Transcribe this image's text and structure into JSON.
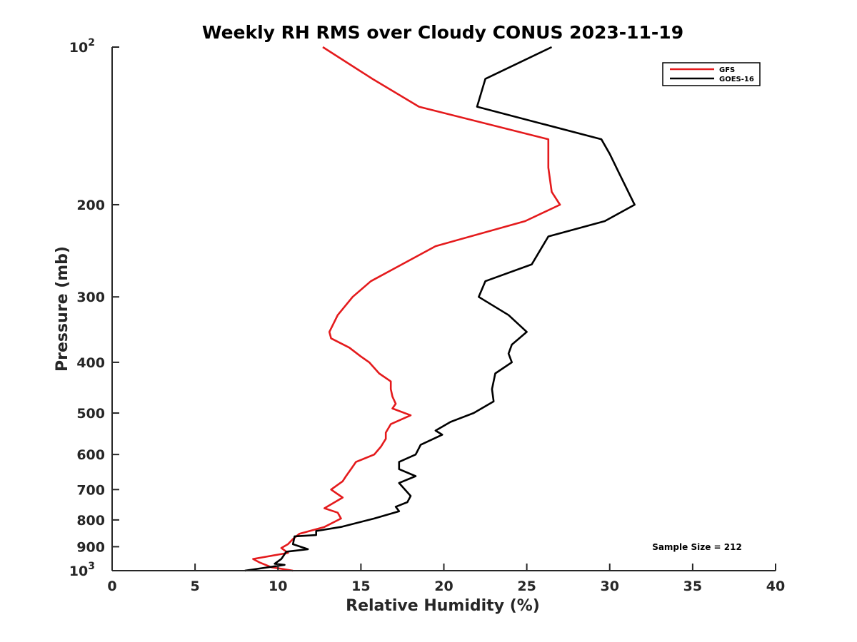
{
  "chart_data": {
    "type": "line",
    "title": "Weekly RH RMS over Cloudy CONUS 2023-11-19",
    "xlabel": "Relative Humidity (%)",
    "ylabel": "Pressure (mb)",
    "xlim": [
      0,
      40
    ],
    "ylim": [
      100,
      1000
    ],
    "y_scale": "log",
    "y_reversed": true,
    "grid": false,
    "legend_position": "top-right",
    "x_ticks": [
      0,
      5,
      10,
      15,
      20,
      25,
      30,
      35,
      40
    ],
    "y_ticks": [
      {
        "value": 100,
        "base": "10",
        "exp": "2"
      },
      {
        "value": 200,
        "label": "200"
      },
      {
        "value": 300,
        "label": "300"
      },
      {
        "value": 400,
        "label": "400"
      },
      {
        "value": 500,
        "label": "500"
      },
      {
        "value": 600,
        "label": "600"
      },
      {
        "value": 700,
        "label": "700"
      },
      {
        "value": 800,
        "label": "800"
      },
      {
        "value": 900,
        "label": "900"
      },
      {
        "value": 1000,
        "base": "10",
        "exp": "3"
      }
    ],
    "series": [
      {
        "name": "GFS",
        "color": "#e41a1c",
        "points": [
          [
            12.7,
            100
          ],
          [
            15.7,
            115
          ],
          [
            18.5,
            130
          ],
          [
            26.3,
            150
          ],
          [
            26.3,
            170
          ],
          [
            26.5,
            189
          ],
          [
            27.0,
            200
          ],
          [
            24.9,
            215
          ],
          [
            19.5,
            240
          ],
          [
            15.6,
            280
          ],
          [
            14.5,
            300
          ],
          [
            13.6,
            325
          ],
          [
            13.1,
            350
          ],
          [
            13.2,
            360
          ],
          [
            14.3,
            375
          ],
          [
            15.0,
            390
          ],
          [
            15.5,
            400
          ],
          [
            16.1,
            420
          ],
          [
            16.8,
            435
          ],
          [
            16.8,
            450
          ],
          [
            16.9,
            465
          ],
          [
            17.1,
            480
          ],
          [
            16.9,
            490
          ],
          [
            18.0,
            505
          ],
          [
            16.8,
            525
          ],
          [
            16.5,
            545
          ],
          [
            16.5,
            560
          ],
          [
            16.2,
            580
          ],
          [
            15.8,
            600
          ],
          [
            14.7,
            620
          ],
          [
            14.4,
            640
          ],
          [
            14.1,
            660
          ],
          [
            13.9,
            675
          ],
          [
            13.2,
            700
          ],
          [
            13.9,
            725
          ],
          [
            12.8,
            760
          ],
          [
            13.6,
            775
          ],
          [
            13.8,
            795
          ],
          [
            12.8,
            825
          ],
          [
            11.3,
            850
          ],
          [
            10.9,
            870
          ],
          [
            10.6,
            890
          ],
          [
            10.2,
            905
          ],
          [
            10.6,
            925
          ],
          [
            8.5,
            950
          ],
          [
            8.9,
            965
          ],
          [
            9.6,
            985
          ],
          [
            10.9,
            1000
          ]
        ]
      },
      {
        "name": "GOES-16",
        "color": "#000000",
        "points": [
          [
            26.5,
            100
          ],
          [
            22.5,
            115
          ],
          [
            22.0,
            130
          ],
          [
            29.5,
            150
          ],
          [
            30.0,
            160
          ],
          [
            30.6,
            175
          ],
          [
            31.5,
            200
          ],
          [
            29.7,
            215
          ],
          [
            26.3,
            230
          ],
          [
            25.3,
            260
          ],
          [
            22.5,
            280
          ],
          [
            22.1,
            300
          ],
          [
            23.9,
            325
          ],
          [
            25.0,
            350
          ],
          [
            24.1,
            370
          ],
          [
            23.9,
            385
          ],
          [
            24.1,
            400
          ],
          [
            23.1,
            420
          ],
          [
            22.9,
            450
          ],
          [
            23.0,
            475
          ],
          [
            21.8,
            500
          ],
          [
            20.4,
            520
          ],
          [
            19.5,
            540
          ],
          [
            19.9,
            550
          ],
          [
            18.6,
            575
          ],
          [
            18.3,
            600
          ],
          [
            17.3,
            620
          ],
          [
            17.3,
            640
          ],
          [
            18.3,
            660
          ],
          [
            17.3,
            680
          ],
          [
            18.0,
            720
          ],
          [
            17.8,
            740
          ],
          [
            17.1,
            755
          ],
          [
            17.3,
            770
          ],
          [
            15.8,
            795
          ],
          [
            13.8,
            825
          ],
          [
            12.3,
            840
          ],
          [
            12.3,
            855
          ],
          [
            11.0,
            860
          ],
          [
            10.9,
            890
          ],
          [
            11.8,
            910
          ],
          [
            10.5,
            920
          ],
          [
            10.2,
            950
          ],
          [
            9.8,
            970
          ],
          [
            10.4,
            975
          ],
          [
            8.0,
            1000
          ]
        ]
      }
    ],
    "annotations": [
      {
        "text": "Sample Size = 212"
      }
    ]
  }
}
